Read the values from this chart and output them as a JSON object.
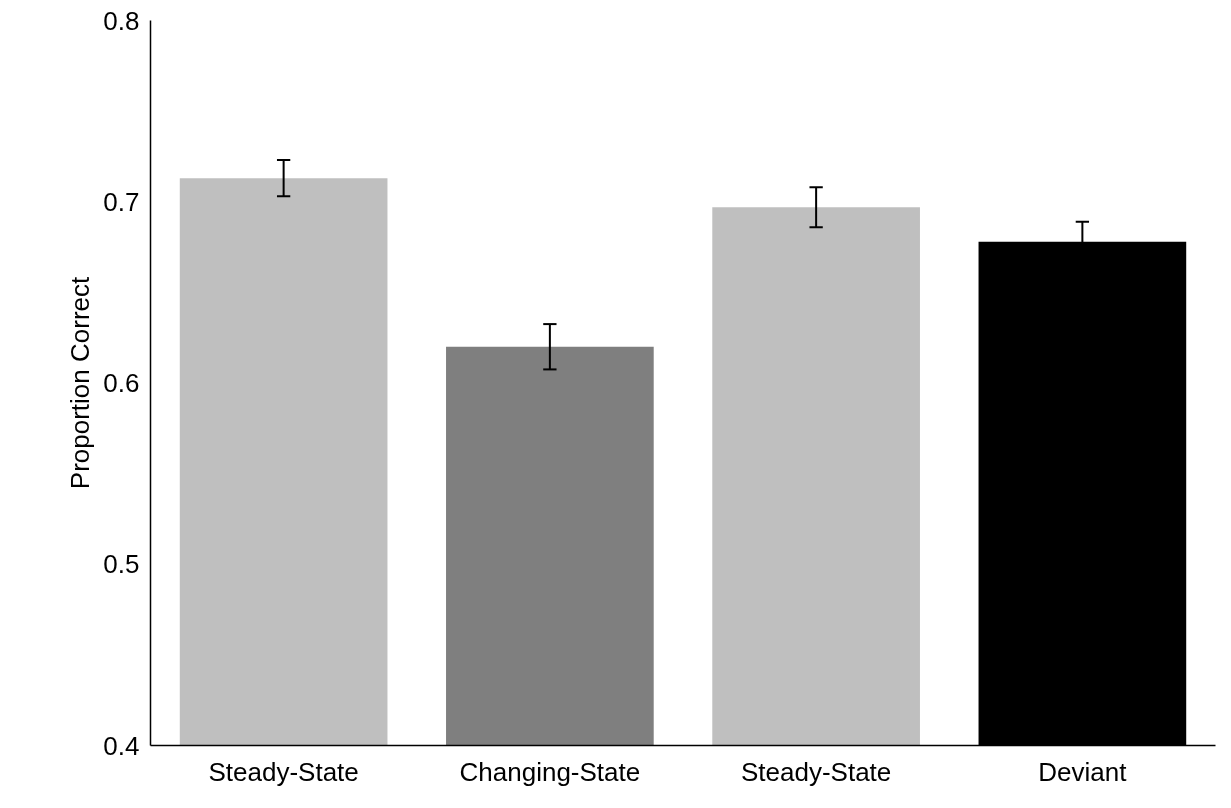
{
  "chart_data": {
    "type": "bar",
    "ylabel": "Proportion Correct",
    "categories": [
      "Steady-State",
      "Changing-State",
      "Steady-State",
      "Deviant"
    ],
    "values": [
      0.713,
      0.62,
      0.697,
      0.678
    ],
    "colors": [
      "#bfbfbf",
      "#7f7f7f",
      "#bfbfbf",
      "#000000"
    ],
    "errors": [
      0.01,
      0.0125,
      0.011,
      0.011
    ],
    "ylim": [
      0.4,
      0.8
    ],
    "yticks": [
      0.4,
      0.5,
      0.6,
      0.7,
      0.8
    ],
    "grid": false
  }
}
